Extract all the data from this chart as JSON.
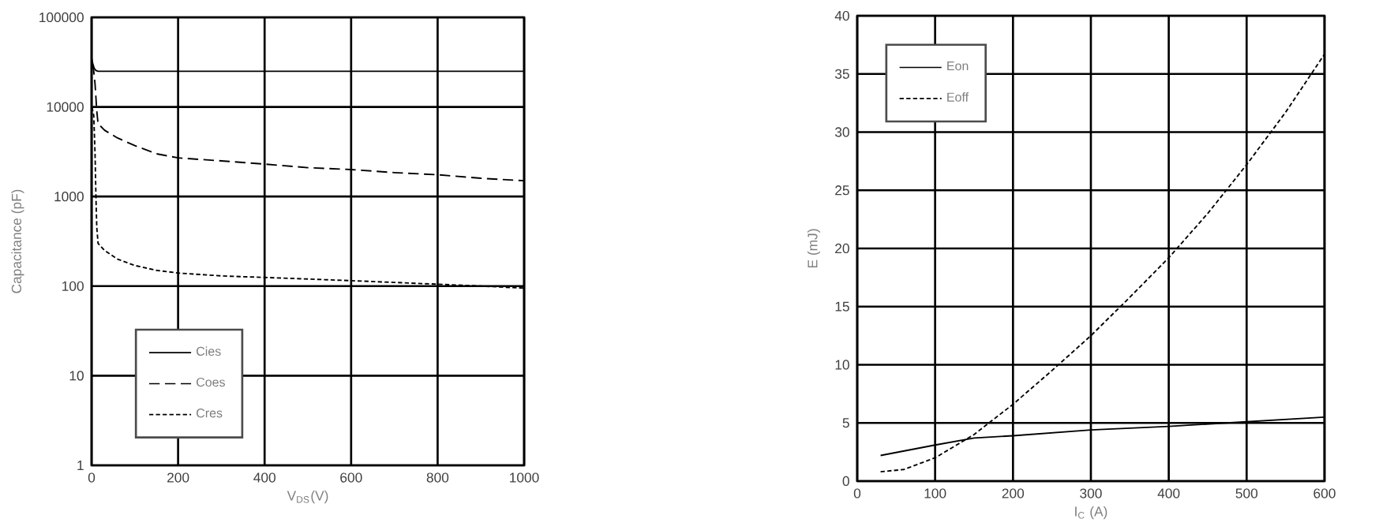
{
  "chart_data": [
    {
      "type": "line",
      "xlabel": "V$_{DS}$(V)",
      "ylabel": "Capacitance (pF)",
      "log": "y",
      "grid": true,
      "legend": "bottom left",
      "xlim": [
        0,
        1000
      ],
      "xticks": [
        0,
        200,
        400,
        600,
        800,
        1000
      ],
      "ylim": [
        1,
        100000
      ],
      "yticks": [
        1,
        10,
        100,
        1000,
        10000,
        100000
      ],
      "series": [
        {
          "name": "Cies",
          "color": "#000000",
          "line_style": "solid",
          "x": [
            0,
            3,
            6,
            10,
            15,
            50,
            200,
            400,
            600,
            800,
            1000
          ],
          "values": [
            35000,
            30000,
            27000,
            25500,
            25000,
            25000,
            25000,
            25000,
            25000,
            25000,
            25000
          ]
        },
        {
          "name": "Coes",
          "color": "#000000",
          "line_style": "dashed",
          "x": [
            2,
            5,
            8,
            12,
            15,
            30,
            60,
            100,
            150,
            200,
            300,
            400,
            500,
            600,
            700,
            800,
            900,
            1000
          ],
          "values": [
            30000,
            25000,
            18000,
            9000,
            6500,
            5500,
            4500,
            3700,
            3000,
            2700,
            2500,
            2300,
            2100,
            2000,
            1850,
            1750,
            1600,
            1500
          ]
        },
        {
          "name": "Cres",
          "color": "#000000",
          "line_style": "dotted",
          "x": [
            1,
            5,
            8,
            10,
            12,
            15,
            30,
            60,
            100,
            150,
            200,
            300,
            400,
            500,
            600,
            700,
            800,
            900,
            1000
          ],
          "values": [
            10000,
            8000,
            3000,
            1000,
            450,
            300,
            250,
            200,
            170,
            150,
            140,
            130,
            125,
            120,
            115,
            110,
            105,
            100,
            95
          ]
        }
      ]
    },
    {
      "type": "line",
      "xlabel": "I$_{C}$ (A)",
      "ylabel": "E (mJ)",
      "grid": true,
      "legend": "top left",
      "xlim": [
        0,
        600
      ],
      "xticks": [
        0,
        100,
        200,
        300,
        400,
        500,
        600
      ],
      "ylim": [
        0,
        40
      ],
      "yticks": [
        0,
        5,
        10,
        15,
        20,
        25,
        30,
        35,
        40
      ],
      "series": [
        {
          "name": "Eon",
          "color": "#000000",
          "line_style": "solid",
          "x": [
            30,
            100,
            150,
            200,
            300,
            400,
            500,
            600
          ],
          "values": [
            2.2,
            3.1,
            3.7,
            3.9,
            4.4,
            4.7,
            5.1,
            5.5
          ]
        },
        {
          "name": "Eoff",
          "color": "#000000",
          "line_style": "dotted",
          "x": [
            30,
            60,
            100,
            150,
            200,
            250,
            300,
            350,
            400,
            450,
            500,
            550,
            600
          ],
          "values": [
            0.8,
            1.0,
            2.0,
            4.0,
            6.6,
            9.5,
            12.5,
            15.8,
            19.2,
            23.0,
            27.2,
            31.7,
            36.7
          ]
        }
      ]
    }
  ]
}
